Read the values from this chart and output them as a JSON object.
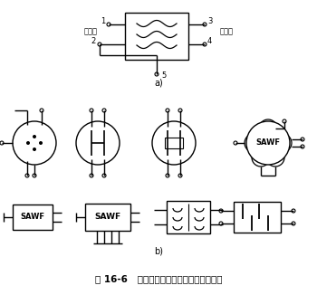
{
  "title": "图 16-6   声表面滤波器常用的电路图形符号",
  "title_fontsize": 7.5,
  "fig_bg": "#ffffff",
  "lw": 1.0,
  "label_a": "a)",
  "label_b": "b)",
  "input_label": "输入端",
  "output_label": "输出端"
}
